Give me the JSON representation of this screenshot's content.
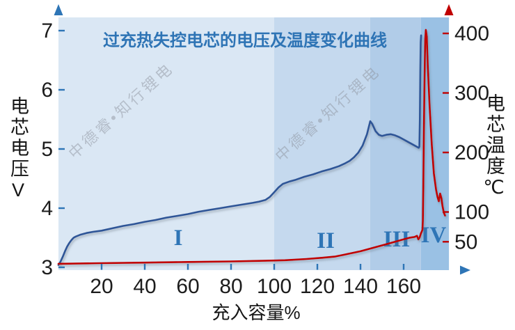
{
  "watermark": {
    "text": "中德睿•知行锂电"
  },
  "colors": {
    "axis_blue": "#2e75b6",
    "curve_blue": "#2f5597",
    "curve_red": "#c00000",
    "title_blue": "#2e74b5",
    "tick_text": "#1c1c1c",
    "region_label": "#2e75b6"
  },
  "chart_data": {
    "type": "line",
    "title": "过充热失控电芯的电压及温度变化曲线",
    "xlabel": "充入容量%",
    "xlim": [
      0,
      181
    ],
    "x_ticks": [
      20,
      40,
      60,
      80,
      100,
      120,
      140,
      160
    ],
    "grid": false,
    "legend": "none",
    "left_axis": {
      "label": "电芯电压V",
      "ticks": [
        3,
        4,
        5,
        6,
        7
      ],
      "lim": [
        2.95,
        7.4
      ],
      "color": "#2e75b6"
    },
    "right_axis": {
      "label": "电芯温度℃",
      "ticks": [
        50,
        100,
        200,
        300,
        400
      ],
      "lim": [
        0,
        445
      ],
      "color": "#c00000"
    },
    "regions": [
      {
        "label": "I",
        "from": 0,
        "to": 100,
        "color": "#dae7f4"
      },
      {
        "label": "II",
        "from": 100,
        "to": 144.5,
        "color": "#c5d9ee"
      },
      {
        "label": "III",
        "from": 144.5,
        "to": 168,
        "color": "#b1cce8"
      },
      {
        "label": "IV",
        "from": 168,
        "to": 181,
        "color": "#9ac1e4"
      }
    ],
    "series": [
      {
        "name": "电芯电压",
        "axis": "left",
        "color": "#2f5597",
        "points": [
          [
            0,
            3.04
          ],
          [
            1,
            3.1
          ],
          [
            2,
            3.18
          ],
          [
            3,
            3.27
          ],
          [
            4,
            3.35
          ],
          [
            5,
            3.41
          ],
          [
            6,
            3.46
          ],
          [
            7,
            3.5
          ],
          [
            8,
            3.52
          ],
          [
            10,
            3.55
          ],
          [
            13,
            3.58
          ],
          [
            16,
            3.6
          ],
          [
            20,
            3.62
          ],
          [
            25,
            3.66
          ],
          [
            30,
            3.7
          ],
          [
            35,
            3.73
          ],
          [
            40,
            3.77
          ],
          [
            45,
            3.8
          ],
          [
            50,
            3.84
          ],
          [
            55,
            3.87
          ],
          [
            60,
            3.9
          ],
          [
            65,
            3.94
          ],
          [
            70,
            3.97
          ],
          [
            75,
            4.0
          ],
          [
            80,
            4.03
          ],
          [
            85,
            4.06
          ],
          [
            90,
            4.09
          ],
          [
            93,
            4.11
          ],
          [
            96,
            4.14
          ],
          [
            98,
            4.19
          ],
          [
            100,
            4.27
          ],
          [
            102,
            4.35
          ],
          [
            104,
            4.41
          ],
          [
            107,
            4.45
          ],
          [
            110,
            4.48
          ],
          [
            114,
            4.53
          ],
          [
            118,
            4.57
          ],
          [
            122,
            4.62
          ],
          [
            126,
            4.66
          ],
          [
            130,
            4.71
          ],
          [
            133,
            4.76
          ],
          [
            135,
            4.8
          ],
          [
            137,
            4.86
          ],
          [
            139,
            4.94
          ],
          [
            141,
            5.06
          ],
          [
            143,
            5.25
          ],
          [
            144.5,
            5.47
          ],
          [
            145.5,
            5.42
          ],
          [
            147,
            5.3
          ],
          [
            148.5,
            5.24
          ],
          [
            150,
            5.22
          ],
          [
            152,
            5.24
          ],
          [
            154,
            5.25
          ],
          [
            156,
            5.23
          ],
          [
            158,
            5.2
          ],
          [
            160,
            5.16
          ],
          [
            162,
            5.12
          ],
          [
            164,
            5.08
          ],
          [
            166,
            5.04
          ],
          [
            167,
            5.02
          ],
          [
            167.3,
            5.04
          ],
          [
            167.5,
            5.5
          ],
          [
            167.7,
            6.3
          ],
          [
            167.9,
            6.8
          ],
          [
            168.1,
            6.92
          ]
        ]
      },
      {
        "name": "电芯温度",
        "axis": "right",
        "color": "#c00000",
        "points": [
          [
            0,
            13
          ],
          [
            20,
            14
          ],
          [
            40,
            15
          ],
          [
            60,
            16
          ],
          [
            80,
            17
          ],
          [
            95,
            18
          ],
          [
            105,
            19
          ],
          [
            115,
            21
          ],
          [
            122,
            23
          ],
          [
            128,
            25
          ],
          [
            132,
            28
          ],
          [
            136,
            31
          ],
          [
            140,
            34
          ],
          [
            144,
            38
          ],
          [
            148,
            42
          ],
          [
            152,
            46
          ],
          [
            156,
            50
          ],
          [
            160,
            54
          ],
          [
            163,
            57
          ],
          [
            165,
            58
          ],
          [
            166.2,
            60
          ],
          [
            166.8,
            54
          ],
          [
            167.4,
            57
          ],
          [
            168,
            64
          ],
          [
            168.4,
            67
          ],
          [
            168.7,
            70
          ],
          [
            168.9,
            85
          ],
          [
            169.1,
            140
          ],
          [
            169.4,
            240
          ],
          [
            169.7,
            330
          ],
          [
            170,
            390
          ],
          [
            170.3,
            406
          ],
          [
            170.7,
            395
          ],
          [
            171.2,
            345
          ],
          [
            172,
            280
          ],
          [
            173,
            215
          ],
          [
            174,
            165
          ],
          [
            175,
            138
          ],
          [
            175.7,
            125
          ],
          [
            176.3,
            118
          ],
          [
            176.9,
            131
          ],
          [
            177.5,
            123
          ],
          [
            178,
            110
          ],
          [
            178.6,
            99
          ],
          [
            179.2,
            94
          ]
        ]
      }
    ]
  }
}
